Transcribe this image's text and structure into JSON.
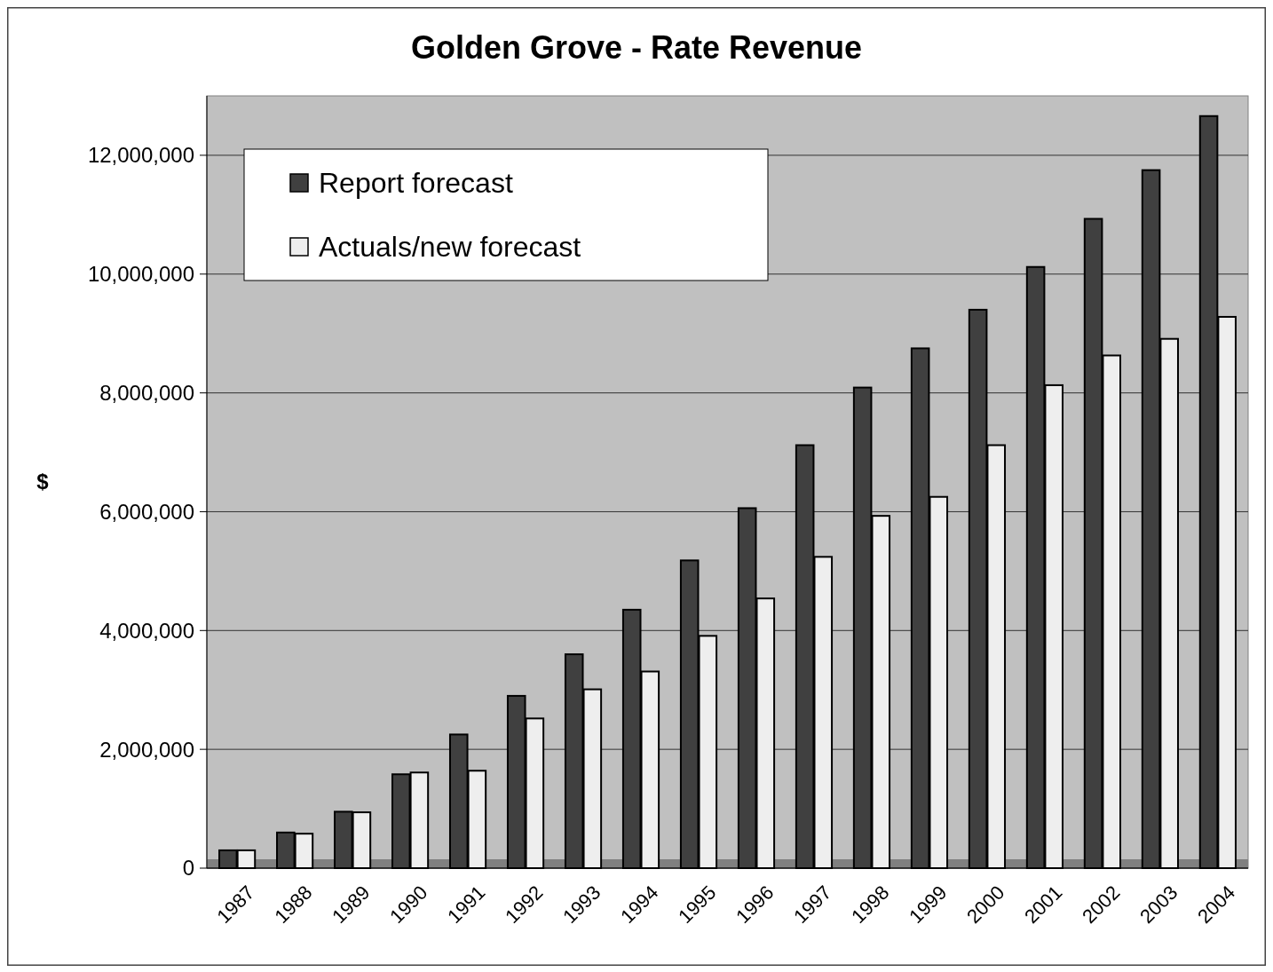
{
  "chart_data": {
    "type": "bar",
    "title": "Golden Grove - Rate Revenue",
    "ylabel": "$",
    "categories": [
      "1987",
      "1988",
      "1989",
      "1990",
      "1991",
      "1992",
      "1993",
      "1994",
      "1995",
      "1996",
      "1997",
      "1998",
      "1999",
      "2000",
      "2001",
      "2002",
      "2003",
      "2004"
    ],
    "series": [
      {
        "name": "Report forecast",
        "color": "#404040",
        "values": [
          300000,
          600000,
          950000,
          1580000,
          2250000,
          2900000,
          3600000,
          4350000,
          5180000,
          6060000,
          7120000,
          8090000,
          8750000,
          9400000,
          10120000,
          10930000,
          11750000,
          12660000
        ]
      },
      {
        "name": "Actuals/new forecast",
        "color": "#eeeeee",
        "values": [
          300000,
          580000,
          940000,
          1610000,
          1640000,
          2520000,
          3010000,
          3310000,
          3910000,
          4540000,
          5240000,
          5930000,
          6250000,
          7120000,
          8130000,
          8630000,
          8910000,
          9280000
        ]
      }
    ],
    "ylim": [
      0,
      13000000
    ],
    "yticks": [
      {
        "value": 0,
        "label": "0"
      },
      {
        "value": 2000000,
        "label": "2,000,000"
      },
      {
        "value": 4000000,
        "label": "4,000,000"
      },
      {
        "value": 6000000,
        "label": "6,000,000"
      },
      {
        "value": 8000000,
        "label": "8,000,000"
      },
      {
        "value": 10000000,
        "label": "10,000,000"
      },
      {
        "value": 12000000,
        "label": "12,000,000"
      }
    ],
    "grid": "y",
    "legend": "top left"
  }
}
